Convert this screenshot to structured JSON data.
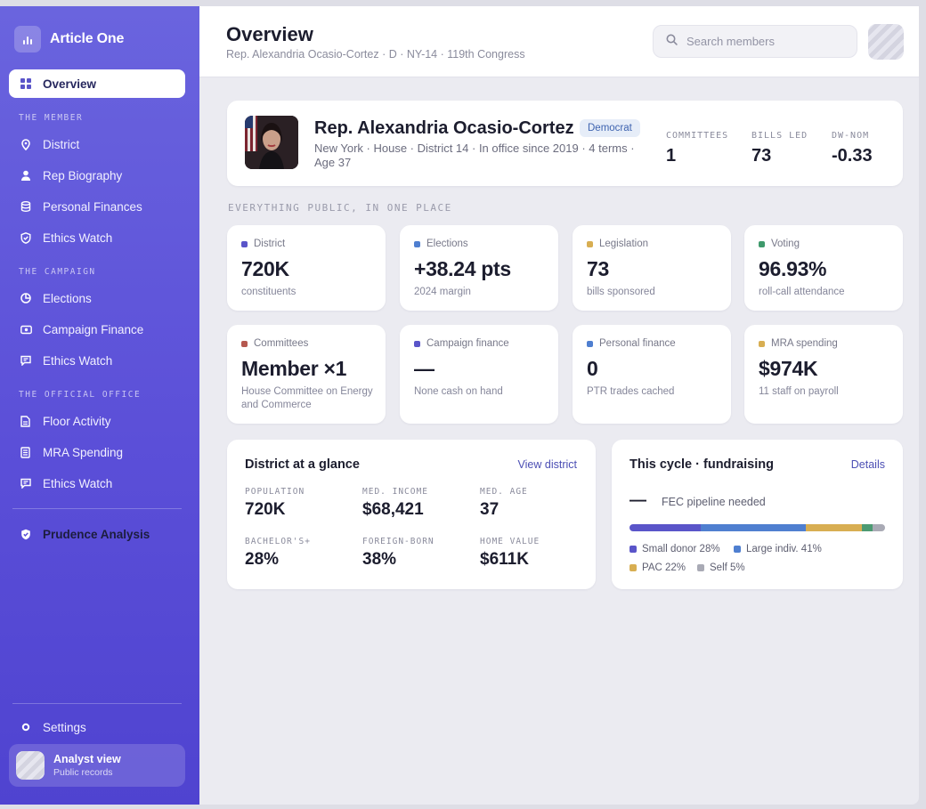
{
  "brand": {
    "name": "Article One"
  },
  "sidebar": {
    "overview": "Overview",
    "sections": [
      {
        "label": "THE MEMBER",
        "items": [
          "District",
          "Rep Biography",
          "Personal Finances",
          "Ethics Watch"
        ]
      },
      {
        "label": "THE CAMPAIGN",
        "items": [
          "Elections",
          "Campaign Finance",
          "Ethics Watch"
        ]
      },
      {
        "label": "THE OFFICIAL OFFICE",
        "items": [
          "Floor Activity",
          "MRA Spending",
          "Ethics Watch"
        ]
      }
    ],
    "prudence": "Prudence Analysis",
    "settings": "Settings",
    "analyst": {
      "title": "Analyst view",
      "subtitle": "Public records"
    }
  },
  "header": {
    "title": "Overview",
    "subtitle": "Rep. Alexandria Ocasio-Cortez · D · NY-14 · 119th Congress",
    "search_placeholder": "Search members"
  },
  "profile": {
    "name": "Rep. Alexandria Ocasio-Cortez",
    "party": "Democrat",
    "meta": "New York · House · District 14 · In office since 2019 · 4 terms · Age 37",
    "stats": [
      {
        "key": "COMMITTEES",
        "value": "1"
      },
      {
        "key": "BILLS LED",
        "value": "73"
      },
      {
        "key": "DW-NOM",
        "value": "-0.33"
      }
    ]
  },
  "eyebrow": "EVERYTHING PUBLIC, IN ONE PLACE",
  "tiles": [
    {
      "label": "District",
      "value": "720K",
      "sub": "constituents",
      "color": "#5a55c9"
    },
    {
      "label": "Elections",
      "value": "+38.24 pts",
      "sub": "2024 margin",
      "color": "#4f7fd0"
    },
    {
      "label": "Legislation",
      "value": "73",
      "sub": "bills sponsored",
      "color": "#d8ae52"
    },
    {
      "label": "Voting",
      "value": "96.93%",
      "sub": "roll-call attendance",
      "color": "#3f9a6c"
    },
    {
      "label": "Committees",
      "value": "Member ×1",
      "sub": "House Committee on Energy and Commerce",
      "color": "#b5584f"
    },
    {
      "label": "Campaign finance",
      "value": "—",
      "sub": "None cash on hand",
      "color": "#5a55c9"
    },
    {
      "label": "Personal finance",
      "value": "0",
      "sub": "PTR trades cached",
      "color": "#4f7fd0"
    },
    {
      "label": "MRA spending",
      "value": "$974K",
      "sub": "11 staff on payroll",
      "color": "#d8ae52"
    }
  ],
  "district": {
    "title": "District at a glance",
    "link": "View district",
    "items": [
      {
        "key": "POPULATION",
        "value": "720K"
      },
      {
        "key": "MED. INCOME",
        "value": "$68,421"
      },
      {
        "key": "MED. AGE",
        "value": "37"
      },
      {
        "key": "BACHELOR'S+",
        "value": "28%"
      },
      {
        "key": "FOREIGN-BORN",
        "value": "38%"
      },
      {
        "key": "HOME VALUE",
        "value": "$611K"
      }
    ]
  },
  "fundraising": {
    "title": "This cycle · fundraising",
    "link": "Details",
    "amount": "—",
    "note": "FEC pipeline needed",
    "segments": [
      {
        "name": "Small donor",
        "label": "Small donor 28%",
        "pct": 28,
        "color": "#5a55c9"
      },
      {
        "name": "Large indiv.",
        "label": "Large indiv. 41%",
        "pct": 41,
        "color": "#4f7fd0"
      },
      {
        "name": "PAC",
        "label": "PAC 22%",
        "pct": 22,
        "color": "#d8ae52"
      },
      {
        "name": "Other",
        "label": "",
        "pct": 4,
        "color": "#4c9a72"
      },
      {
        "name": "Self",
        "label": "Self 5%",
        "pct": 5,
        "color": "#a9aab5"
      }
    ]
  }
}
